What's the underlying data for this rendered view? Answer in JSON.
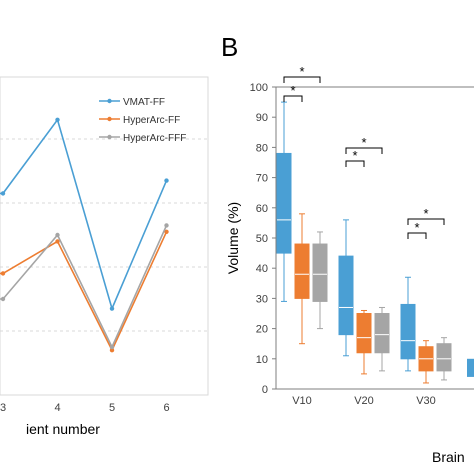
{
  "chart_data": [
    {
      "type": "line",
      "x": [
        3,
        4,
        5,
        6
      ],
      "xlabel": "ient number",
      "series": [
        {
          "name": "VMAT-FF",
          "color": "#4a9fd4",
          "values": [
            63,
            86,
            27,
            67
          ]
        },
        {
          "name": "HyperArc-FF",
          "color": "#ed7d31",
          "values": [
            38,
            48,
            14,
            51
          ]
        },
        {
          "name": "HyperArc-FFF",
          "color": "#a5a5a5",
          "values": [
            30,
            50,
            15,
            53
          ]
        }
      ],
      "legend": "top-right",
      "grid": true
    },
    {
      "type": "box",
      "panel_label": "B",
      "ylabel": "Volume (%)",
      "xlabel": "Brain",
      "ylim": [
        0,
        100
      ],
      "yticks": [
        "0",
        "10",
        "20",
        "30",
        "40",
        "50",
        "60",
        "70",
        "80",
        "90",
        "100"
      ],
      "categories": [
        "V10",
        "V20",
        "V30"
      ],
      "series": [
        {
          "color": "#4a9fd4",
          "boxes": [
            {
              "min": 29,
              "q1": 45,
              "median": 56,
              "q3": 78,
              "max": 95
            },
            {
              "min": 11,
              "q1": 18,
              "median": 27,
              "q3": 44,
              "max": 56
            },
            {
              "min": 6,
              "q1": 10,
              "median": 16,
              "q3": 28,
              "max": 37
            }
          ]
        },
        {
          "color": "#ed7d31",
          "boxes": [
            {
              "min": 15,
              "q1": 30,
              "median": 38,
              "q3": 48,
              "max": 58
            },
            {
              "min": 5,
              "q1": 12,
              "median": 17,
              "q3": 25,
              "max": 26
            },
            {
              "min": 2,
              "q1": 6,
              "median": 10,
              "q3": 14,
              "max": 16
            }
          ]
        },
        {
          "color": "#a5a5a5",
          "boxes": [
            {
              "min": 20,
              "q1": 29,
              "median": 38,
              "q3": 48,
              "max": 52
            },
            {
              "min": 6,
              "q1": 12,
              "median": 18,
              "q3": 25,
              "max": 27
            },
            {
              "min": 3,
              "q1": 6,
              "median": 10,
              "q3": 15,
              "max": 17
            }
          ]
        }
      ],
      "annotations": [
        "*",
        "*",
        "*",
        "*",
        "*",
        "*"
      ]
    }
  ]
}
